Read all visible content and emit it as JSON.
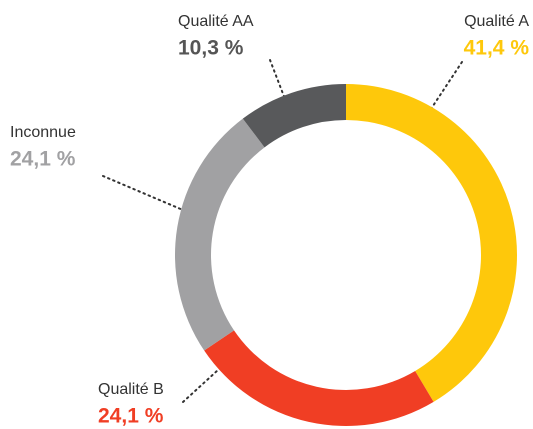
{
  "chart_data": {
    "type": "donut",
    "categories": [
      "Qualité A",
      "Qualité B",
      "Inconnue",
      "Qualité AA"
    ],
    "values": [
      41.4,
      24.1,
      24.1,
      10.3
    ],
    "value_labels": [
      "41,4 %",
      "24,1 %",
      "24,1 %",
      "10,3 %"
    ],
    "colors": [
      "#fec80b",
      "#f03e24",
      "#a1a1a3",
      "#58595b"
    ]
  }
}
